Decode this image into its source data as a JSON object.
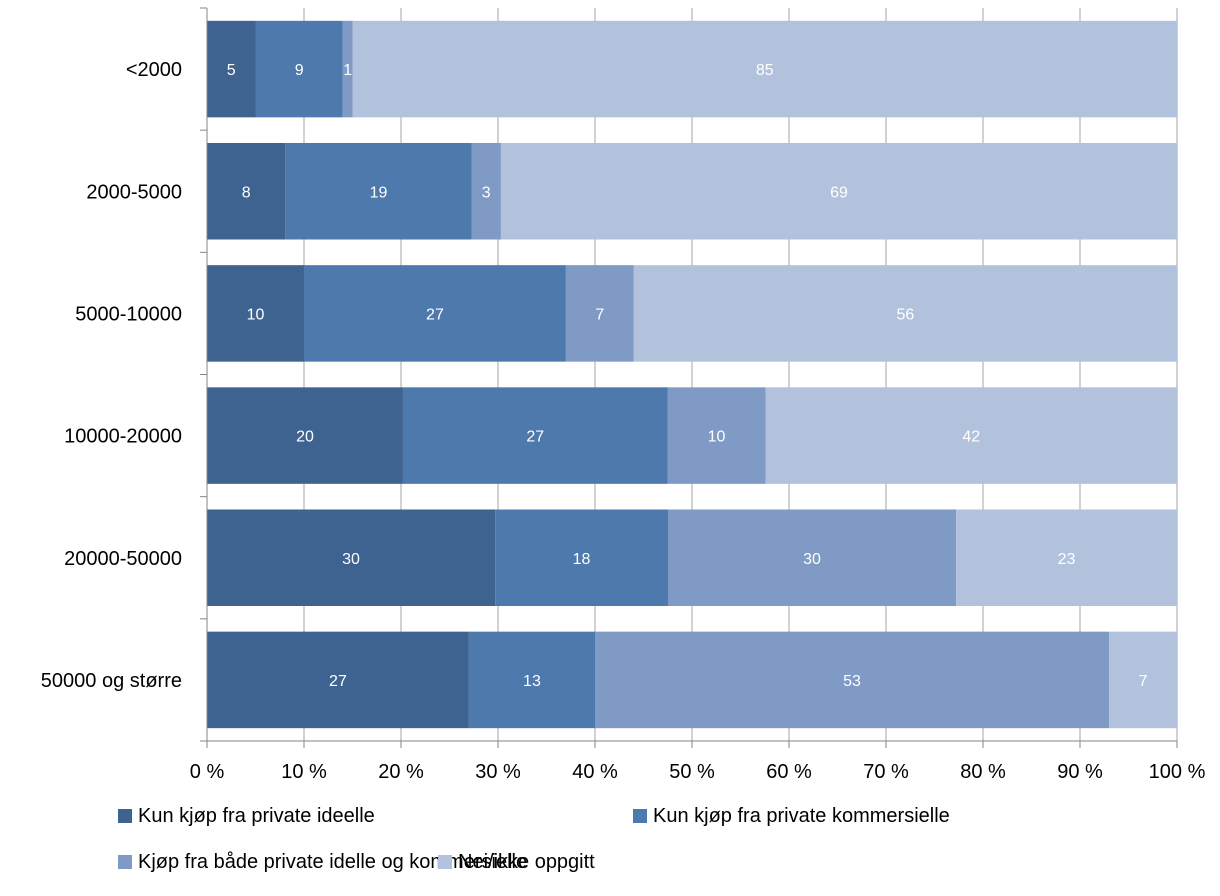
{
  "chart_data": {
    "type": "bar",
    "orientation": "horizontal",
    "stacked": "percent",
    "categories": [
      "<2000",
      "2000-5000",
      "5000-10000",
      "10000-20000",
      "20000-50000",
      "50000 og større"
    ],
    "series": [
      {
        "name": "Kun kjøp fra private ideelle",
        "color": "#3f6390",
        "values": [
          5,
          8,
          10,
          20,
          30,
          27
        ]
      },
      {
        "name": "Kun kjøp fra private kommersielle",
        "color": "#4e79ad",
        "values": [
          9,
          19,
          27,
          27,
          18,
          13
        ]
      },
      {
        "name": "Kjøp fra både private idelle og kommersielle",
        "color": "#7f9ac4",
        "values": [
          1,
          3,
          7,
          10,
          30,
          53
        ]
      },
      {
        "name": "Nei/ikke oppgitt",
        "color": "#b3c2dc",
        "values": [
          85,
          69,
          56,
          42,
          23,
          7
        ]
      }
    ],
    "xlim": [
      0,
      100
    ],
    "x_ticks": [
      "0 %",
      "10 %",
      "20 %",
      "30 %",
      "40 %",
      "50 %",
      "60 %",
      "70 %",
      "80 %",
      "90 %",
      "100 %"
    ],
    "title": "",
    "xlabel": "",
    "ylabel": "",
    "grid": "vertical",
    "grid_color": "#a6a6a6",
    "axis_color": "#868686",
    "data_label_color": "#ffffff",
    "legend_position": "bottom"
  }
}
